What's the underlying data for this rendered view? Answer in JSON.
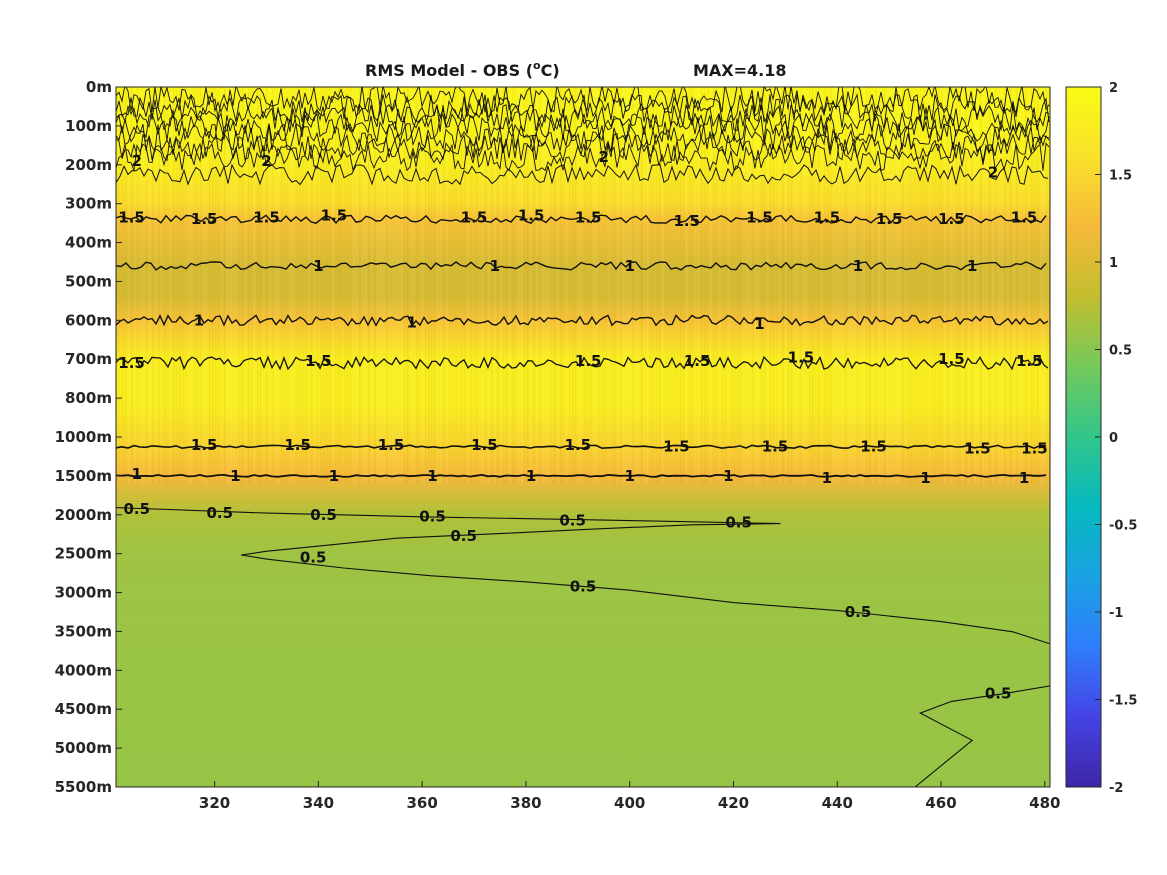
{
  "chart_data": {
    "type": "heatmap",
    "title": "RMS Model - OBS (",
    "title_sup": "o",
    "title_unit_suffix": "C)",
    "max_label": "MAX=4.18",
    "x": {
      "min": 301,
      "max": 481,
      "ticks": [
        320,
        340,
        360,
        380,
        400,
        420,
        440,
        460,
        480
      ]
    },
    "y": {
      "tick_labels": [
        "0m",
        "100m",
        "200m",
        "300m",
        "400m",
        "500m",
        "600m",
        "700m",
        "800m",
        "1000m",
        "1500m",
        "2000m",
        "2500m",
        "3000m",
        "3500m",
        "4000m",
        "4500m",
        "5000m",
        "5500m"
      ]
    },
    "colorbar": {
      "min": -2,
      "max": 2,
      "ticks": [
        "2",
        "1.5",
        "1",
        "0.5",
        "0",
        "-0.5",
        "-1",
        "-1.5",
        "-2"
      ],
      "colormap": [
        "#3e26a8",
        "#4543e5",
        "#2f7dfb",
        "#1aa2e2",
        "#06b9bf",
        "#31c68b",
        "#74c95b",
        "#c2be2f",
        "#f6b93b",
        "#f9e12a",
        "#f9fb15"
      ]
    },
    "depth_profile": [
      {
        "level": 0,
        "value": 1.9
      },
      {
        "level": 1,
        "value": 1.9
      },
      {
        "level": 2,
        "value": 1.8
      },
      {
        "level": 3,
        "value": 1.55
      },
      {
        "level": 3.4,
        "value": 1.3
      },
      {
        "level": 4.6,
        "value": 0.95
      },
      {
        "level": 5.4,
        "value": 0.95
      },
      {
        "level": 6.0,
        "value": 1.3
      },
      {
        "level": 7,
        "value": 1.8
      },
      {
        "level": 8.2,
        "value": 1.8
      },
      {
        "level": 9.3,
        "value": 1.45
      },
      {
        "level": 10,
        "value": 1.2
      },
      {
        "level": 11,
        "value": 0.7
      },
      {
        "level": 12,
        "value": 0.62
      },
      {
        "level": 14,
        "value": 0.6
      },
      {
        "level": 18,
        "value": 0.58
      }
    ],
    "contour_labels": [
      {
        "text": "2",
        "x": 305,
        "y": 1.9
      },
      {
        "text": "2",
        "x": 330,
        "y": 1.9
      },
      {
        "text": "2",
        "x": 395,
        "y": 1.8
      },
      {
        "text": "2",
        "x": 470,
        "y": 2.2
      },
      {
        "text": "1.5",
        "x": 304,
        "y": 3.35
      },
      {
        "text": "1.5",
        "x": 318,
        "y": 3.4
      },
      {
        "text": "1.5",
        "x": 330,
        "y": 3.35
      },
      {
        "text": "1.5",
        "x": 343,
        "y": 3.3
      },
      {
        "text": "1.5",
        "x": 370,
        "y": 3.35
      },
      {
        "text": "1.5",
        "x": 381,
        "y": 3.3
      },
      {
        "text": "1.5",
        "x": 392,
        "y": 3.35
      },
      {
        "text": "1.5",
        "x": 411,
        "y": 3.45
      },
      {
        "text": "1.5",
        "x": 425,
        "y": 3.35
      },
      {
        "text": "1.5",
        "x": 438,
        "y": 3.35
      },
      {
        "text": "1.5",
        "x": 450,
        "y": 3.4
      },
      {
        "text": "1.5",
        "x": 462,
        "y": 3.4
      },
      {
        "text": "1.5",
        "x": 476,
        "y": 3.35
      },
      {
        "text": "1",
        "x": 340,
        "y": 4.6
      },
      {
        "text": "1",
        "x": 374,
        "y": 4.6
      },
      {
        "text": "1",
        "x": 400,
        "y": 4.6
      },
      {
        "text": "1",
        "x": 444,
        "y": 4.6
      },
      {
        "text": "1",
        "x": 466,
        "y": 4.6
      },
      {
        "text": "1",
        "x": 317,
        "y": 6.0
      },
      {
        "text": "1",
        "x": 358,
        "y": 6.05
      },
      {
        "text": "1",
        "x": 425,
        "y": 6.1
      },
      {
        "text": "1.5",
        "x": 304,
        "y": 7.1
      },
      {
        "text": "1.5",
        "x": 340,
        "y": 7.05
      },
      {
        "text": "1.5",
        "x": 392,
        "y": 7.05
      },
      {
        "text": "1.5",
        "x": 413,
        "y": 7.05
      },
      {
        "text": "1.5",
        "x": 433,
        "y": 6.95
      },
      {
        "text": "1.5",
        "x": 462,
        "y": 7.0
      },
      {
        "text": "1.5",
        "x": 477,
        "y": 7.05
      },
      {
        "text": "1.5",
        "x": 318,
        "y": 9.2
      },
      {
        "text": "1.5",
        "x": 336,
        "y": 9.2
      },
      {
        "text": "1.5",
        "x": 354,
        "y": 9.2
      },
      {
        "text": "1.5",
        "x": 372,
        "y": 9.2
      },
      {
        "text": "1.5",
        "x": 390,
        "y": 9.2
      },
      {
        "text": "1.5",
        "x": 409,
        "y": 9.25
      },
      {
        "text": "1.5",
        "x": 428,
        "y": 9.25
      },
      {
        "text": "1.5",
        "x": 447,
        "y": 9.25
      },
      {
        "text": "1.5",
        "x": 467,
        "y": 9.3
      },
      {
        "text": "1.5",
        "x": 478,
        "y": 9.3
      },
      {
        "text": "1",
        "x": 305,
        "y": 9.95
      },
      {
        "text": "1",
        "x": 324,
        "y": 10.0
      },
      {
        "text": "1",
        "x": 343,
        "y": 10.0
      },
      {
        "text": "1",
        "x": 362,
        "y": 10.0
      },
      {
        "text": "1",
        "x": 381,
        "y": 10.0
      },
      {
        "text": "1",
        "x": 400,
        "y": 10.0
      },
      {
        "text": "1",
        "x": 419,
        "y": 10.0
      },
      {
        "text": "1",
        "x": 438,
        "y": 10.05
      },
      {
        "text": "1",
        "x": 457,
        "y": 10.05
      },
      {
        "text": "1",
        "x": 476,
        "y": 10.05
      },
      {
        "text": "0.5",
        "x": 305,
        "y": 10.85
      },
      {
        "text": "0.5",
        "x": 321,
        "y": 10.95
      },
      {
        "text": "0.5",
        "x": 341,
        "y": 11.0
      },
      {
        "text": "0.5",
        "x": 362,
        "y": 11.05
      },
      {
        "text": "0.5",
        "x": 389,
        "y": 11.15
      },
      {
        "text": "0.5",
        "x": 421,
        "y": 11.2
      },
      {
        "text": "0.5",
        "x": 368,
        "y": 11.55
      },
      {
        "text": "0.5",
        "x": 339,
        "y": 12.1
      },
      {
        "text": "0.5",
        "x": 391,
        "y": 12.85
      },
      {
        "text": "0.5",
        "x": 444,
        "y": 13.5
      },
      {
        "text": "0.5",
        "x": 471,
        "y": 15.6
      }
    ]
  }
}
